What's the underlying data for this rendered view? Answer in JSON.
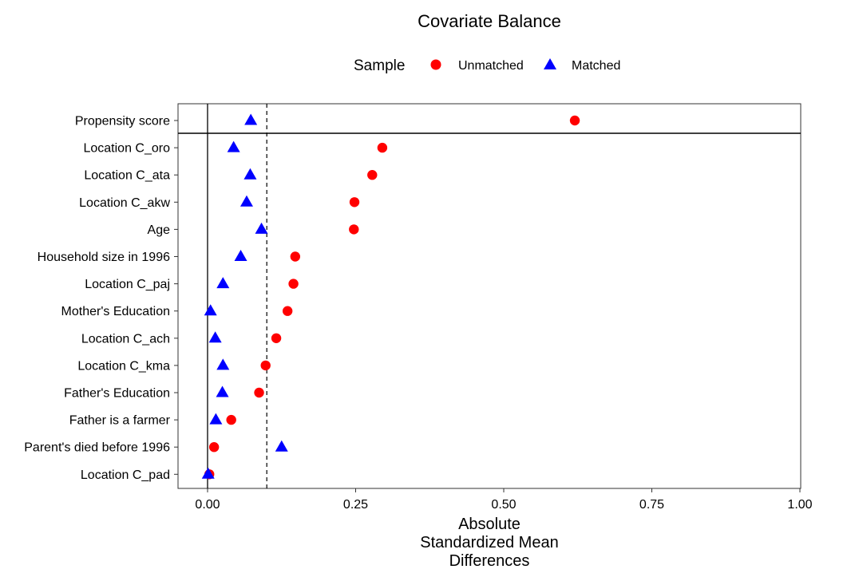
{
  "chart_data": {
    "type": "scatter",
    "title": "Covariate Balance",
    "legend": {
      "title": "Sample",
      "placement": "top",
      "entries": [
        {
          "name": "Unmatched",
          "marker": "circle",
          "color": "#ff0000"
        },
        {
          "name": "Matched",
          "marker": "triangle",
          "color": "#0000ff"
        }
      ]
    },
    "xlabel_lines": [
      "Absolute",
      "Standardized Mean",
      "Differences"
    ],
    "xlim": [
      0,
      1
    ],
    "xticks": [
      0,
      0.25,
      0.5,
      0.75,
      1
    ],
    "xtick_labels": [
      "0.00",
      "0.25",
      "0.50",
      "0.75",
      "1.00"
    ],
    "threshold_line": 0.1,
    "reference_line": 0,
    "grid": false,
    "categories": [
      "Propensity score",
      "Location C_oro",
      "Location C_ata",
      "Location C_akw",
      "Age",
      "Household size in 1996",
      "Location C_paj",
      "Mother's Education",
      "Location C_ach",
      "Location C_kma",
      "Father's Education",
      "Father is a farmer",
      "Parent's died before 1996",
      "Location C_pad"
    ],
    "series": [
      {
        "name": "Unmatched",
        "color": "#ff0000",
        "values": [
          0.62,
          0.295,
          0.278,
          0.248,
          0.247,
          0.148,
          0.145,
          0.135,
          0.116,
          0.098,
          0.087,
          0.04,
          0.011,
          0.003
        ]
      },
      {
        "name": "Matched",
        "color": "#0000ff",
        "values": [
          0.073,
          0.044,
          0.072,
          0.066,
          0.091,
          0.056,
          0.026,
          0.005,
          0.013,
          0.026,
          0.025,
          0.014,
          0.125,
          0.001
        ]
      }
    ]
  }
}
